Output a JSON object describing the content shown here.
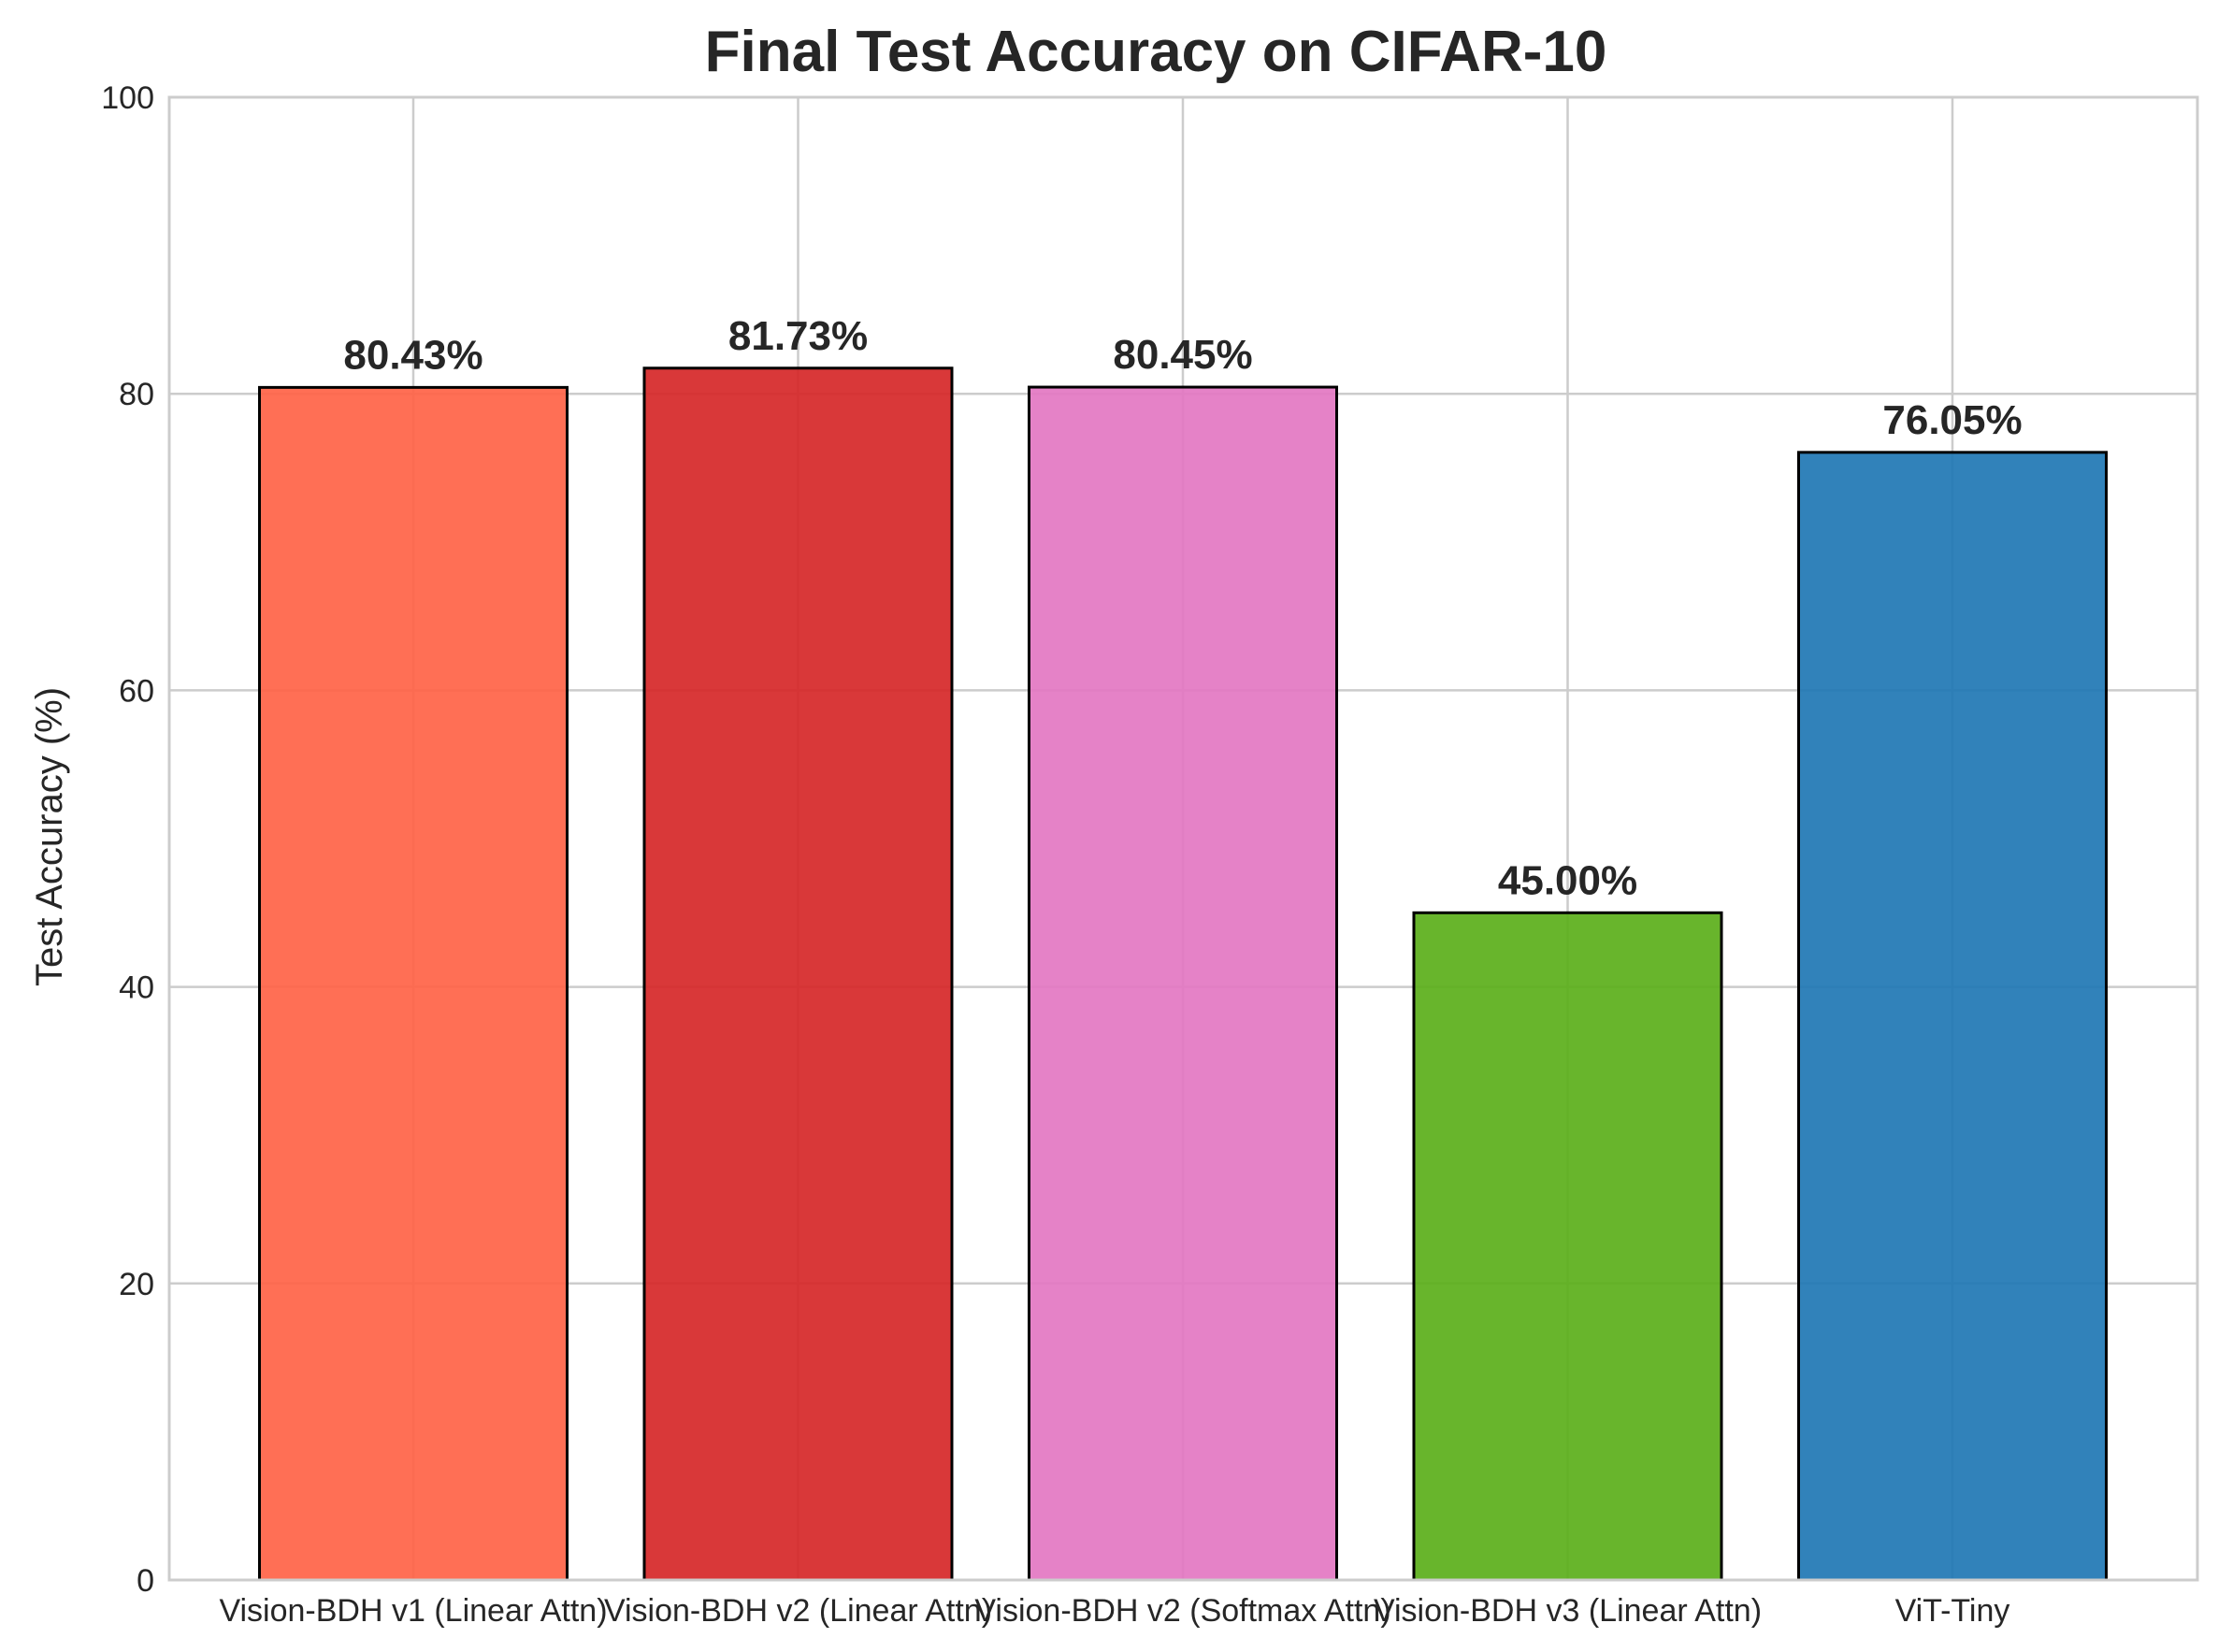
{
  "chart_data": {
    "type": "bar",
    "title": "Final Test Accuracy on CIFAR-10",
    "xlabel": "",
    "ylabel": "Test Accuracy (%)",
    "ylim": [
      0,
      100
    ],
    "yticks": [
      "0",
      "20",
      "40",
      "60",
      "80",
      "100"
    ],
    "grid": true,
    "categories": [
      "Vision-BDH v1 (Linear Attn)",
      "Vision-BDH v2 (Linear Attn)",
      "Vision-BDH v2 (Softmax Attn)",
      "Vision-BDH v3 (Linear Attn)",
      "ViT-Tiny"
    ],
    "values": [
      80.43,
      81.73,
      80.45,
      45.0,
      76.05
    ],
    "value_labels": [
      "80.43%",
      "81.73%",
      "80.45%",
      "45.00%",
      "76.05%"
    ],
    "colors": [
      "#FF6347",
      "#D62728",
      "#E377C2",
      "#5BAF1A",
      "#1F77B4"
    ],
    "edge_color": "#000000"
  }
}
